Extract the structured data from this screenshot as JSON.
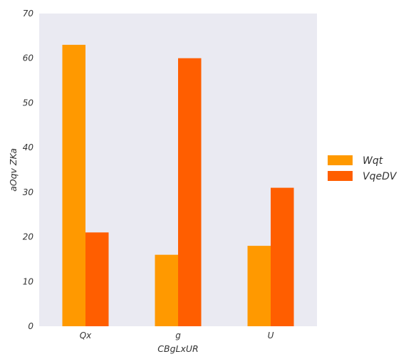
{
  "chart_data": {
    "type": "bar",
    "categories": [
      "Qx",
      "g",
      "U"
    ],
    "series": [
      {
        "name": "Wqt",
        "values": [
          63,
          16,
          18
        ],
        "color": "#ff9900"
      },
      {
        "name": "VqeDV",
        "values": [
          21,
          60,
          31
        ],
        "color": "#ff5e00"
      }
    ],
    "xlabel": "CBgLxUR",
    "ylabel": "aOqv ZKa",
    "ylim": [
      0,
      70
    ],
    "yticks": [
      0,
      10,
      20,
      30,
      40,
      50,
      60,
      70
    ],
    "grid": false,
    "legend_position": "right",
    "plot_background": "#eaeaf2"
  }
}
